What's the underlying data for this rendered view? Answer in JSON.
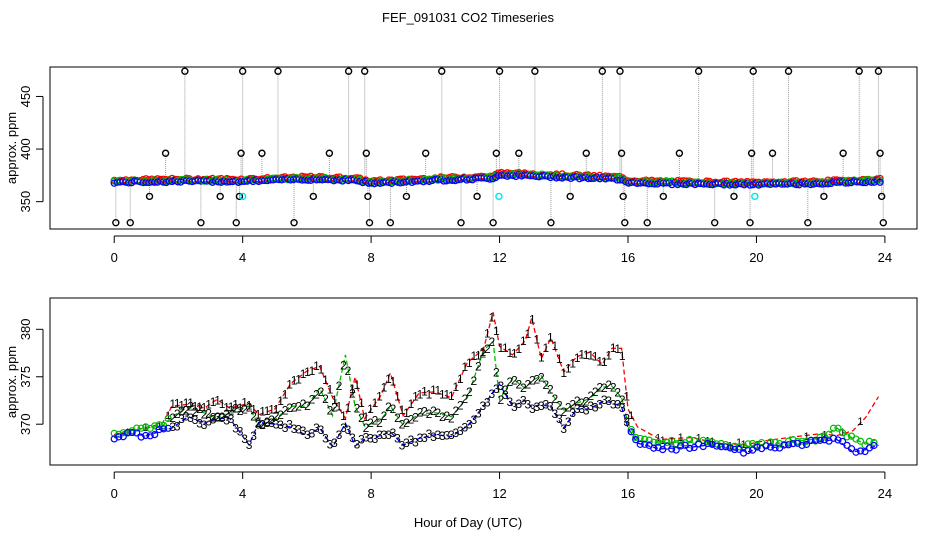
{
  "title": "FEF_091031  CO2 Timeseries",
  "xlabel": "Hour of Day (UTC)",
  "colors": {
    "level1": "#ff0000",
    "level2": "#00bb00",
    "level3": "#0000ff",
    "black": "#000000",
    "cyan": "#00e5ee",
    "grey": "#999999"
  },
  "chart_data": [
    {
      "type": "scatter",
      "panel": "top",
      "ylabel": "approx. ppm",
      "xlim": [
        -2.0,
        25.0
      ],
      "ylim": [
        324,
        478
      ],
      "xticks": [
        0,
        4,
        8,
        12,
        16,
        20,
        24
      ],
      "yticks": [
        350,
        400,
        450
      ],
      "baseline": [
        [
          0,
          369
        ],
        [
          2,
          370
        ],
        [
          4,
          370
        ],
        [
          6,
          372
        ],
        [
          7.5,
          371
        ],
        [
          8,
          368
        ],
        [
          10,
          371
        ],
        [
          11.8,
          373
        ],
        [
          12,
          376
        ],
        [
          14,
          374
        ],
        [
          15.8,
          372
        ],
        [
          16,
          369
        ],
        [
          17,
          368
        ],
        [
          19.8,
          367
        ],
        [
          20,
          367
        ],
        [
          22,
          368
        ],
        [
          23.8,
          370
        ]
      ],
      "spikes": [
        {
          "x": 0.05,
          "y": 330
        },
        {
          "x": 0.5,
          "y": 330
        },
        {
          "x": 1.1,
          "y": 355
        },
        {
          "x": 1.6,
          "y": 396
        },
        {
          "x": 2.2,
          "y": 474
        },
        {
          "x": 2.7,
          "y": 330
        },
        {
          "x": 3.3,
          "y": 355
        },
        {
          "x": 3.8,
          "y": 330
        },
        {
          "x": 3.9,
          "y": 355
        },
        {
          "x": 3.95,
          "y": 396
        },
        {
          "x": 4.0,
          "y": 474
        },
        {
          "x": 4.6,
          "y": 396
        },
        {
          "x": 5.1,
          "y": 474
        },
        {
          "x": 5.6,
          "y": 330
        },
        {
          "x": 6.2,
          "y": 355
        },
        {
          "x": 6.7,
          "y": 396
        },
        {
          "x": 7.3,
          "y": 474
        },
        {
          "x": 7.8,
          "y": 474
        },
        {
          "x": 7.85,
          "y": 396
        },
        {
          "x": 7.9,
          "y": 355
        },
        {
          "x": 7.95,
          "y": 330
        },
        {
          "x": 8.6,
          "y": 330
        },
        {
          "x": 9.1,
          "y": 355
        },
        {
          "x": 9.7,
          "y": 396
        },
        {
          "x": 10.2,
          "y": 474
        },
        {
          "x": 10.8,
          "y": 330
        },
        {
          "x": 11.3,
          "y": 355
        },
        {
          "x": 11.8,
          "y": 330
        },
        {
          "x": 11.9,
          "y": 396
        },
        {
          "x": 12.0,
          "y": 474
        },
        {
          "x": 12.6,
          "y": 396
        },
        {
          "x": 13.1,
          "y": 474
        },
        {
          "x": 13.6,
          "y": 330
        },
        {
          "x": 14.2,
          "y": 355
        },
        {
          "x": 14.7,
          "y": 396
        },
        {
          "x": 15.2,
          "y": 474
        },
        {
          "x": 15.75,
          "y": 474
        },
        {
          "x": 15.8,
          "y": 396
        },
        {
          "x": 15.85,
          "y": 355
        },
        {
          "x": 15.9,
          "y": 330
        },
        {
          "x": 16.6,
          "y": 330
        },
        {
          "x": 17.1,
          "y": 355
        },
        {
          "x": 17.6,
          "y": 396
        },
        {
          "x": 18.2,
          "y": 474
        },
        {
          "x": 18.7,
          "y": 330
        },
        {
          "x": 19.3,
          "y": 355
        },
        {
          "x": 19.8,
          "y": 330
        },
        {
          "x": 19.85,
          "y": 396
        },
        {
          "x": 19.9,
          "y": 474
        },
        {
          "x": 20.5,
          "y": 396
        },
        {
          "x": 21.0,
          "y": 474
        },
        {
          "x": 21.6,
          "y": 330
        },
        {
          "x": 22.1,
          "y": 355
        },
        {
          "x": 22.7,
          "y": 396
        },
        {
          "x": 23.2,
          "y": 474
        },
        {
          "x": 23.8,
          "y": 474
        },
        {
          "x": 23.85,
          "y": 396
        },
        {
          "x": 23.9,
          "y": 355
        },
        {
          "x": 23.95,
          "y": 330
        }
      ],
      "cyan_points": [
        {
          "x": 4.0,
          "y": 355
        },
        {
          "x": 11.98,
          "y": 355
        },
        {
          "x": 19.95,
          "y": 355
        }
      ]
    },
    {
      "type": "line",
      "panel": "bottom",
      "ylabel": "approx. ppm",
      "xlim": [
        -2.0,
        25.0
      ],
      "ylim": [
        365.7,
        383.3
      ],
      "xticks": [
        0,
        4,
        8,
        12,
        16,
        20,
        24
      ],
      "yticks": [
        370,
        375,
        380
      ],
      "series": [
        {
          "name": "1",
          "points": [
            [
              0,
              368.9
            ],
            [
              0.5,
              369.4
            ],
            [
              1,
              369.6
            ],
            [
              1.5,
              370.1
            ],
            [
              1.8,
              371.9
            ],
            [
              2.3,
              372.1
            ],
            [
              2.8,
              371.7
            ],
            [
              3.2,
              372.6
            ],
            [
              3.6,
              371.7
            ],
            [
              4.2,
              372.2
            ],
            [
              4.5,
              371.0
            ],
            [
              5.0,
              371.6
            ],
            [
              5.5,
              374.3
            ],
            [
              6.0,
              375.6
            ],
            [
              6.4,
              376.1
            ],
            [
              6.8,
              372.8
            ],
            [
              7.2,
              370.6
            ],
            [
              7.5,
              375.0
            ],
            [
              7.8,
              370.6
            ],
            [
              8.3,
              373.0
            ],
            [
              8.6,
              375.4
            ],
            [
              9.0,
              370.9
            ],
            [
              9.5,
              373.3
            ],
            [
              10.0,
              373.4
            ],
            [
              10.5,
              372.8
            ],
            [
              11.0,
              376.5
            ],
            [
              11.5,
              377.9
            ],
            [
              11.8,
              381.8
            ],
            [
              12.0,
              378.2
            ],
            [
              12.4,
              377.3
            ],
            [
              12.8,
              378.8
            ],
            [
              13.0,
              381.2
            ],
            [
              13.3,
              376.9
            ],
            [
              13.6,
              379.1
            ],
            [
              14.0,
              375.5
            ],
            [
              14.4,
              377.1
            ],
            [
              14.8,
              377.6
            ],
            [
              15.2,
              376.3
            ],
            [
              15.5,
              378.0
            ],
            [
              15.8,
              378.0
            ],
            [
              16.0,
              371.6
            ],
            [
              16.3,
              369.7
            ],
            [
              17.0,
              368.4
            ],
            [
              18.0,
              368.6
            ],
            [
              18.5,
              368.2
            ],
            [
              19.0,
              367.9
            ],
            [
              19.8,
              367.9
            ],
            [
              20.0,
              368.1
            ],
            [
              21.0,
              368.6
            ],
            [
              21.5,
              368.8
            ],
            [
              22.0,
              369.0
            ],
            [
              22.5,
              368.8
            ],
            [
              23.0,
              369.3
            ],
            [
              23.4,
              370.7
            ],
            [
              23.8,
              372.9
            ]
          ]
        },
        {
          "name": "2",
          "points": [
            [
              0,
              368.8
            ],
            [
              0.5,
              369.3
            ],
            [
              1,
              369.6
            ],
            [
              1.5,
              369.8
            ],
            [
              1.8,
              370.8
            ],
            [
              2.3,
              371.8
            ],
            [
              2.8,
              371.2
            ],
            [
              3.2,
              370.6
            ],
            [
              3.6,
              371.2
            ],
            [
              4.2,
              371.9
            ],
            [
              4.5,
              369.8
            ],
            [
              5.0,
              370.5
            ],
            [
              5.5,
              371.9
            ],
            [
              6.0,
              371.9
            ],
            [
              6.4,
              373.8
            ],
            [
              6.8,
              370.9
            ],
            [
              7.2,
              377.3
            ],
            [
              7.5,
              371.9
            ],
            [
              7.8,
              369.8
            ],
            [
              8.3,
              370.4
            ],
            [
              8.6,
              371.9
            ],
            [
              9.0,
              369.9
            ],
            [
              9.5,
              371.1
            ],
            [
              10.0,
              371.2
            ],
            [
              10.5,
              370.8
            ],
            [
              11.0,
              372.8
            ],
            [
              11.5,
              377.8
            ],
            [
              11.8,
              378.7
            ],
            [
              12.0,
              372.6
            ],
            [
              12.4,
              374.8
            ],
            [
              12.8,
              373.8
            ],
            [
              13.0,
              374.6
            ],
            [
              13.3,
              375.1
            ],
            [
              13.6,
              373.3
            ],
            [
              14.0,
              371.5
            ],
            [
              14.4,
              372.2
            ],
            [
              14.8,
              372.7
            ],
            [
              15.2,
              373.9
            ],
            [
              15.5,
              374.0
            ],
            [
              15.8,
              372.8
            ],
            [
              16.0,
              370.1
            ],
            [
              16.3,
              368.3
            ],
            [
              17.0,
              368.0
            ],
            [
              18.0,
              368.2
            ],
            [
              18.5,
              368.1
            ],
            [
              19.0,
              367.8
            ],
            [
              19.8,
              367.7
            ],
            [
              20.0,
              367.8
            ],
            [
              21.0,
              368.1
            ],
            [
              21.5,
              368.3
            ],
            [
              22.0,
              368.5
            ],
            [
              22.5,
              369.6
            ],
            [
              23.0,
              368.5
            ],
            [
              23.4,
              367.9
            ],
            [
              23.8,
              368.5
            ]
          ]
        },
        {
          "name": "3",
          "points": [
            [
              0,
              368.6
            ],
            [
              0.5,
              369.0
            ],
            [
              1,
              368.8
            ],
            [
              1.5,
              369.3
            ],
            [
              1.8,
              369.6
            ],
            [
              2.3,
              370.8
            ],
            [
              2.8,
              370.1
            ],
            [
              3.2,
              370.6
            ],
            [
              3.6,
              370.6
            ],
            [
              4.2,
              367.8
            ],
            [
              4.5,
              370.2
            ],
            [
              5.0,
              370.0
            ],
            [
              5.5,
              369.7
            ],
            [
              6.0,
              368.8
            ],
            [
              6.4,
              369.6
            ],
            [
              6.8,
              367.6
            ],
            [
              7.2,
              370.1
            ],
            [
              7.5,
              367.7
            ],
            [
              7.8,
              368.4
            ],
            [
              8.3,
              368.8
            ],
            [
              8.6,
              369.2
            ],
            [
              9.0,
              367.8
            ],
            [
              9.5,
              368.5
            ],
            [
              10.0,
              368.9
            ],
            [
              10.5,
              368.7
            ],
            [
              11.0,
              369.8
            ],
            [
              11.5,
              371.9
            ],
            [
              11.8,
              373.4
            ],
            [
              12.0,
              374.2
            ],
            [
              12.4,
              371.9
            ],
            [
              12.8,
              372.5
            ],
            [
              13.0,
              371.8
            ],
            [
              13.3,
              372.1
            ],
            [
              13.6,
              371.8
            ],
            [
              14.0,
              369.6
            ],
            [
              14.4,
              371.6
            ],
            [
              14.8,
              371.6
            ],
            [
              15.2,
              372.4
            ],
            [
              15.5,
              372.3
            ],
            [
              15.8,
              371.8
            ],
            [
              16.0,
              369.6
            ],
            [
              16.3,
              368.0
            ],
            [
              17.0,
              367.4
            ],
            [
              18.0,
              367.6
            ],
            [
              18.5,
              367.8
            ],
            [
              19.0,
              367.4
            ],
            [
              19.8,
              367.1
            ],
            [
              20.0,
              367.4
            ],
            [
              21.0,
              367.7
            ],
            [
              21.5,
              368.0
            ],
            [
              22.0,
              368.2
            ],
            [
              22.5,
              368.4
            ],
            [
              23.0,
              367.1
            ],
            [
              23.4,
              367.3
            ],
            [
              23.8,
              367.8
            ]
          ]
        }
      ]
    }
  ]
}
